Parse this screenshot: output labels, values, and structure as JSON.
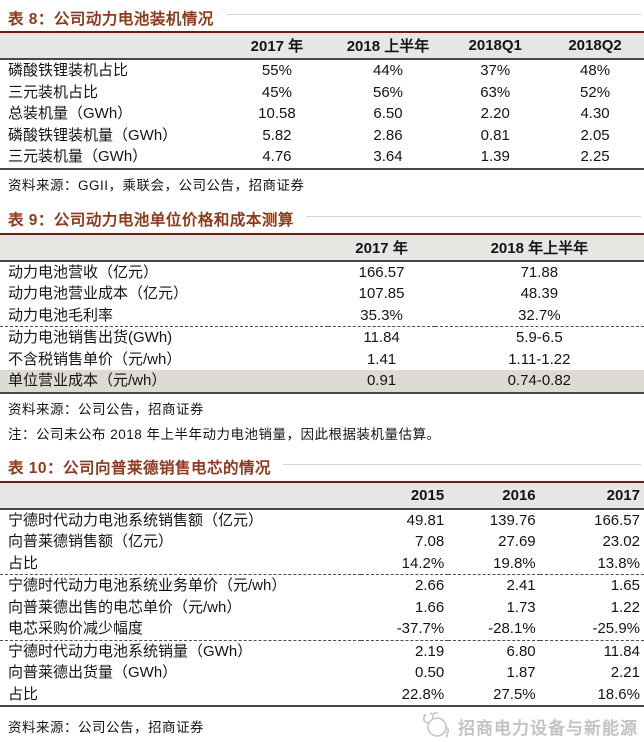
{
  "tables": [
    {
      "title": "表 8：公司动力电池装机情况",
      "columns": [
        "",
        "2017 年",
        "2018 上半年",
        "2018Q1",
        "2018Q2"
      ],
      "rows": [
        {
          "label": "磷酸铁锂装机占比",
          "values": [
            "55%",
            "44%",
            "37%",
            "48%"
          ]
        },
        {
          "label": "三元装机占比",
          "values": [
            "45%",
            "56%",
            "63%",
            "52%"
          ]
        },
        {
          "label": "总装机量（GWh）",
          "values": [
            "10.58",
            "6.50",
            "2.20",
            "4.30"
          ]
        },
        {
          "label": "磷酸铁锂装机量（GWh）",
          "values": [
            "5.82",
            "2.86",
            "0.81",
            "2.05"
          ]
        },
        {
          "label": "三元装机量（GWh）",
          "values": [
            "4.76",
            "3.64",
            "1.39",
            "2.25"
          ]
        }
      ],
      "source": "资料来源：GGII，乘联会，公司公告，招商证券"
    },
    {
      "title": "表 9：公司动力电池单位价格和成本测算",
      "columns": [
        "",
        "2017 年",
        "2018 年上半年"
      ],
      "rows": [
        {
          "label": "动力电池营收（亿元）",
          "values": [
            "166.57",
            "71.88"
          ]
        },
        {
          "label": "动力电池营业成本（亿元）",
          "values": [
            "107.85",
            "48.39"
          ]
        },
        {
          "label": "动力电池毛利率",
          "values": [
            "35.3%",
            "32.7%"
          ]
        },
        {
          "label": "动力电池销售出货(GWh)",
          "values": [
            "11.84",
            "5.9-6.5"
          ],
          "dashed_top": true
        },
        {
          "label": "不含税销售单价（元/wh）",
          "values": [
            "1.41",
            "1.11-1.22"
          ]
        },
        {
          "label": "单位营业成本（元/wh）",
          "values": [
            "0.91",
            "0.74-0.82"
          ],
          "highlight": true
        }
      ],
      "source": "资料来源：公司公告，招商证券",
      "note": "注：公司未公布 2018 年上半年动力电池销量，因此根据装机量估算。"
    },
    {
      "title": "表 10：公司向普莱德销售电芯的情况",
      "columns": [
        "",
        "2015",
        "2016",
        "2017"
      ],
      "rows": [
        {
          "label": "宁德时代动力电池系统销售额（亿元）",
          "values": [
            "49.81",
            "139.76",
            "166.57"
          ]
        },
        {
          "label": "向普莱德销售额（亿元）",
          "values": [
            "7.08",
            "27.69",
            "23.02"
          ]
        },
        {
          "label": "占比",
          "values": [
            "14.2%",
            "19.8%",
            "13.8%"
          ]
        },
        {
          "label": "宁德时代动力电池系统业务单价（元/wh）",
          "values": [
            "2.66",
            "2.41",
            "1.65"
          ],
          "dashed_top": true
        },
        {
          "label": "向普莱德出售的电芯单价（元/wh）",
          "values": [
            "1.66",
            "1.73",
            "1.22"
          ]
        },
        {
          "label": "电芯采购价减少幅度",
          "values": [
            "-37.7%",
            "-28.1%",
            "-25.9%"
          ]
        },
        {
          "label": "宁德时代动力电池系统销量（GWh）",
          "values": [
            "2.19",
            "6.80",
            "11.84"
          ],
          "dashed_top": true
        },
        {
          "label": "向普莱德出货量（GWh）",
          "values": [
            "0.50",
            "1.87",
            "2.21"
          ]
        },
        {
          "label": "占比",
          "values": [
            "22.8%",
            "27.5%",
            "18.6%"
          ]
        }
      ],
      "source": "资料来源：公司公告，招商证券"
    }
  ],
  "watermark": {
    "text": "招商电力设备与新能源",
    "icon": "cmri-flower-logo-icon",
    "color": "#c3c3c3"
  },
  "colors": {
    "title_red": "#8e3a1d",
    "table_top_border": "#6e1a10",
    "header_bg": "#e8e6e2",
    "highlight_bg": "#dedbd5"
  }
}
